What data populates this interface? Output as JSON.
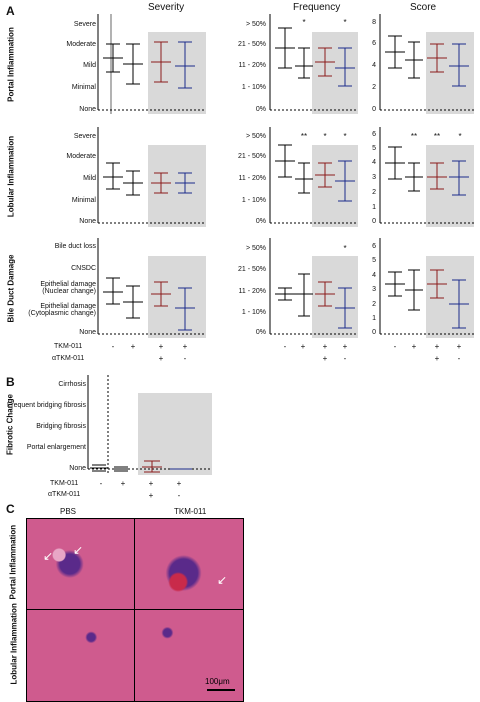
{
  "panel_labels": {
    "a": "A",
    "b": "B",
    "c": "C"
  },
  "columns": [
    "Severity",
    "Frequency",
    "Score"
  ],
  "rows": [
    "Portal Inflammation",
    "Lobular Inflammation",
    "Bile Duct Damage"
  ],
  "severity_labels_portal": [
    "Severe",
    "Moderate",
    "Mild",
    "Minimal",
    "None"
  ],
  "severity_labels_lobular": [
    "Severe",
    "Moderate",
    "Mild",
    "Minimal",
    "None"
  ],
  "severity_labels_bile": [
    "Bile duct loss",
    "CNSDC",
    "Epithelial damage\n(Nuclear change)",
    "Epithelial damage\n(Cytoplasmic change)",
    "None"
  ],
  "freq_labels": [
    "> 50%",
    "21 - 50%",
    "11 - 20%",
    "1 - 10%",
    "0%"
  ],
  "score_ticks_portal": [
    "8",
    "7",
    "6",
    "5",
    "4",
    "3",
    "2",
    "1",
    "0"
  ],
  "score_ticks_lobular": [
    "6",
    "5",
    "4",
    "3",
    "2",
    "1",
    "0"
  ],
  "score_ticks_bile": [
    "6",
    "5",
    "4",
    "3",
    "2",
    "1",
    "0"
  ],
  "treat_rows": {
    "tkm_label": "TKM-011",
    "atkm_label": "αTKM-011",
    "tkm": [
      "-",
      "+",
      "+",
      "+"
    ],
    "atkm": [
      "",
      "",
      "+",
      "-"
    ]
  },
  "sig_marks": {
    "portal_freq": [
      "",
      "*",
      "",
      "*"
    ],
    "lobular_freq": [
      "",
      "**",
      "*",
      "*"
    ],
    "lobular_score": [
      "",
      "**",
      "**",
      "*"
    ],
    "bile_freq": [
      "",
      "",
      "",
      "*"
    ]
  },
  "fibrotic": {
    "row_label": "Fibrotic Change",
    "levels": [
      "Cirrhosis",
      "Frequent bridging fibrosis",
      "Bridging fibrosis",
      "Portal enlargement",
      "None"
    ]
  },
  "histology": {
    "col_titles": [
      "PBS",
      "TKM-011"
    ],
    "row_labels": [
      "Portal Inflammation",
      "Lobular Inflammation"
    ],
    "scale_bar": "100μm"
  },
  "colors": {
    "group1": "#000000",
    "group2": "#000000",
    "group3": "#8b1a1a",
    "group4": "#1a2a8b",
    "shade": "#d8d8d8"
  },
  "chart_data": [
    {
      "type": "scatter",
      "title": "Severity",
      "ylabel": "Portal Inflammation",
      "groups": [
        "PBS",
        "TKM-011",
        "TKM-011 + αTKM-011",
        "TKM-011 only"
      ],
      "means": [
        2.2,
        1.9,
        2.0,
        1.8
      ]
    },
    {
      "type": "scatter",
      "title": "Frequency",
      "ylabel": "Portal Inflammation",
      "groups": [
        "PBS",
        "TKM-011",
        "TKM-011 + αTKM-011",
        "TKM-011 only"
      ],
      "means": [
        3.2,
        2.3,
        2.5,
        2.1
      ]
    },
    {
      "type": "scatter",
      "title": "Score",
      "ylabel": "Portal Inflammation",
      "groups": [
        "PBS",
        "TKM-011",
        "TKM-011 + αTKM-011",
        "TKM-011 only"
      ],
      "means": [
        5.2,
        4.6,
        4.8,
        3.9
      ]
    }
  ]
}
